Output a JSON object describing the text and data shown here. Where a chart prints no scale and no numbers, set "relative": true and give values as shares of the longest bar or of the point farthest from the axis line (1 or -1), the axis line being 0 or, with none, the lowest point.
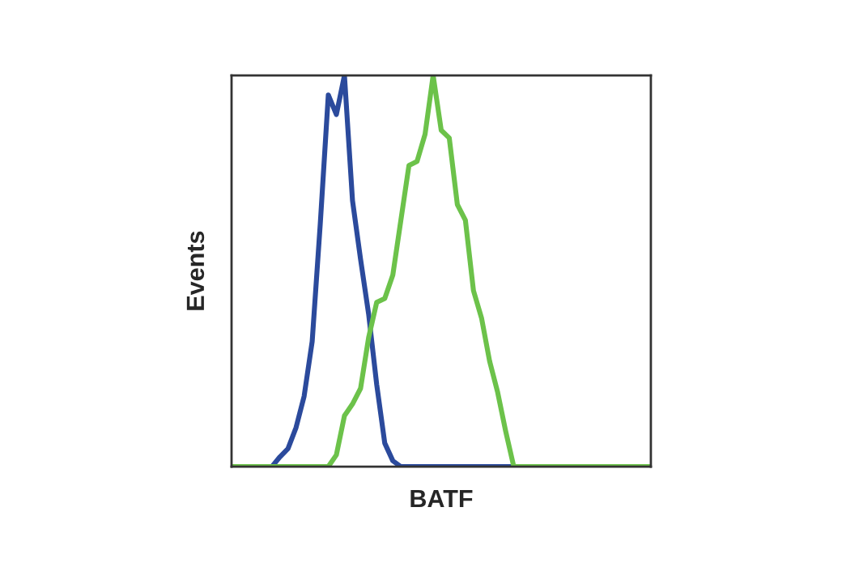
{
  "chart_data": {
    "type": "line",
    "relative": true,
    "xlabel": "BATF",
    "ylabel": "Events",
    "legend": false,
    "marker": "none",
    "line_style": "solid",
    "categories": [
      null,
      null,
      null,
      null,
      null,
      null,
      null,
      null,
      null,
      null,
      null,
      null,
      null,
      null,
      null,
      null,
      null,
      null,
      null,
      null,
      null,
      null,
      null,
      null,
      null,
      null,
      null,
      null,
      null,
      null,
      null,
      null,
      null,
      null,
      null,
      null,
      null,
      null,
      null,
      null,
      null,
      null,
      null,
      null,
      null,
      null,
      null,
      null,
      null,
      null,
      null,
      null,
      null
    ],
    "series": [
      {
        "color": "#2b4a9c",
        "values": [
          null,
          null,
          null,
          0,
          0,
          0,
          0.025,
          0.046,
          0.1,
          0.18,
          0.32,
          0.62,
          0.95,
          0.9,
          1.0,
          0.68,
          0.53,
          0.39,
          0.21,
          0.06,
          0.015,
          0,
          0,
          0,
          0,
          0,
          0,
          0,
          0,
          0,
          0,
          0,
          0,
          0,
          0,
          0,
          0,
          null,
          null,
          null,
          null,
          null,
          null,
          null,
          null,
          null,
          null,
          null,
          null,
          null,
          null,
          null,
          null
        ]
      },
      {
        "color": "#6cc24a",
        "values": [
          0,
          0,
          0,
          0,
          0,
          0,
          0,
          0,
          0,
          0,
          0,
          0,
          0,
          0.03,
          0.13,
          0.16,
          0.2,
          0.33,
          0.42,
          0.43,
          0.49,
          0.63,
          0.77,
          0.78,
          0.85,
          1.0,
          0.86,
          0.84,
          0.67,
          0.63,
          0.45,
          0.38,
          0.27,
          0.19,
          0.09,
          0,
          0,
          0,
          0,
          0,
          0,
          0,
          0,
          0,
          0,
          0,
          0,
          0,
          0,
          0,
          0,
          0,
          0
        ]
      }
    ]
  }
}
